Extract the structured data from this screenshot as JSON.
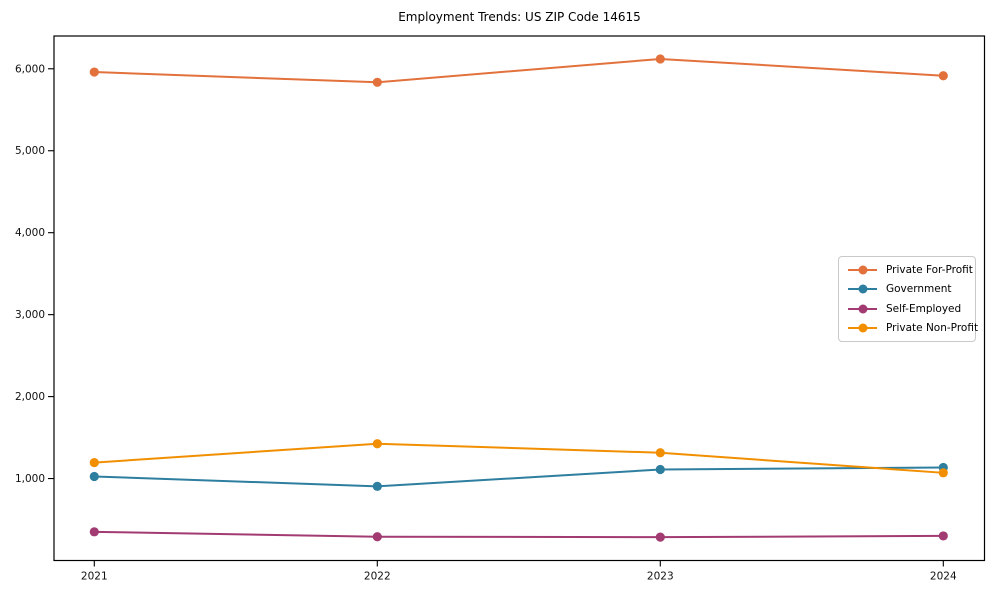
{
  "chart_data": {
    "type": "line",
    "title": "Employment Trends: US ZIP Code 14615",
    "categories": [
      "2021",
      "2022",
      "2023",
      "2024"
    ],
    "series": [
      {
        "name": "Private For-Profit",
        "color": "#E2713C",
        "values": [
          5960,
          5835,
          6120,
          5915
        ]
      },
      {
        "name": "Government",
        "color": "#2E7E9F",
        "values": [
          1025,
          905,
          1110,
          1135
        ]
      },
      {
        "name": "Self-Employed",
        "color": "#A23B72",
        "values": [
          350,
          290,
          285,
          300
        ]
      },
      {
        "name": "Private Non-Profit",
        "color": "#F18F01",
        "values": [
          1195,
          1425,
          1315,
          1070
        ]
      }
    ],
    "ylim": [
      0,
      6400
    ],
    "yticks": [
      1000,
      2000,
      3000,
      4000,
      5000,
      6000
    ],
    "ytick_labels": [
      "1,000",
      "2,000",
      "3,000",
      "4,000",
      "5,000",
      "6,000"
    ],
    "xlabel": "",
    "ylabel": "",
    "grid": false,
    "legend_position": "center-right",
    "marker": "circle",
    "line_width": 2,
    "marker_radius": 4.6,
    "background": "#ffffff",
    "axis_color": "#000000",
    "tick_label_color": "#111111"
  }
}
